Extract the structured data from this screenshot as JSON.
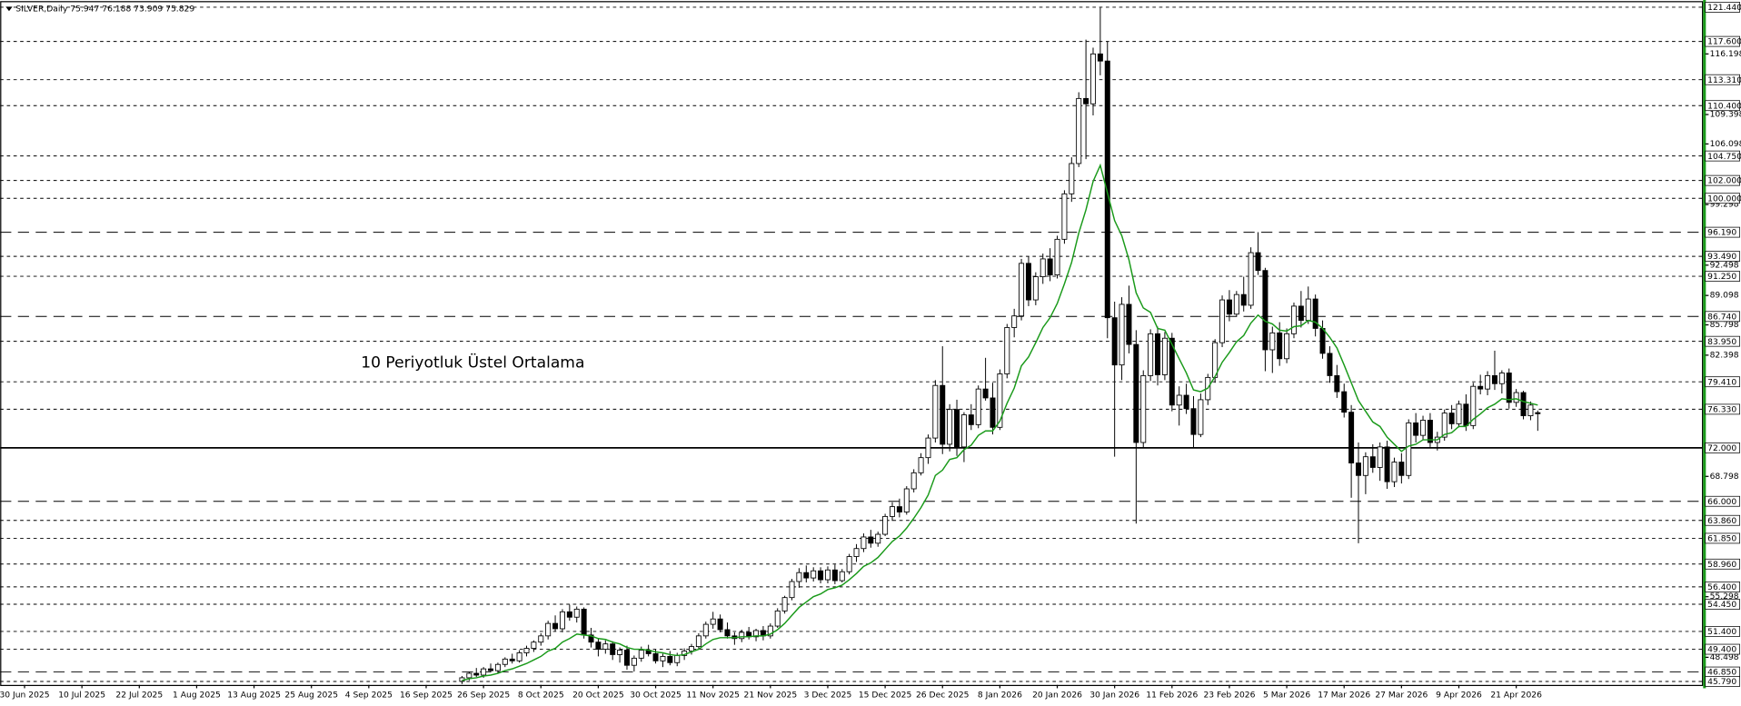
{
  "chart_data": {
    "type": "candlestick",
    "title": "SILVER,Daily  75.947 76.188 73.909 75.829",
    "annotation": {
      "text": "10 Periyotluk Üstel Ortalama",
      "color": "#1a9a1a"
    },
    "xlim": [
      -64.4,
      172.9
    ],
    "xticks": [
      {
        "value": -61,
        "label": "30 Jun 2025"
      },
      {
        "value": -53,
        "label": "10 Jul 2025"
      },
      {
        "value": -45,
        "label": "22 Jul 2025"
      },
      {
        "value": -37,
        "label": "1 Aug 2025"
      },
      {
        "value": -29,
        "label": "13 Aug 2025"
      },
      {
        "value": -21,
        "label": "25 Aug 2025"
      },
      {
        "value": -13,
        "label": "4 Sep 2025"
      },
      {
        "value": -5,
        "label": "16 Sep 2025"
      },
      {
        "value": 3,
        "label": "26 Sep 2025"
      },
      {
        "value": 11,
        "label": "8 Oct 2025"
      },
      {
        "value": 19,
        "label": "20 Oct 2025"
      },
      {
        "value": 27,
        "label": "30 Oct 2025"
      },
      {
        "value": 35,
        "label": "11 Nov 2025"
      },
      {
        "value": 43,
        "label": "21 Nov 2025"
      },
      {
        "value": 51,
        "label": "3 Dec 2025"
      },
      {
        "value": 59,
        "label": "15 Dec 2025"
      },
      {
        "value": 67,
        "label": "26 Dec 2025"
      },
      {
        "value": 75,
        "label": "8 Jan 2026"
      },
      {
        "value": 83,
        "label": "20 Jan 2026"
      },
      {
        "value": 91,
        "label": "30 Jan 2026"
      },
      {
        "value": 99,
        "label": "11 Feb 2026"
      },
      {
        "value": 107,
        "label": "23 Feb 2026"
      },
      {
        "value": 115,
        "label": "5 Mar 2026"
      },
      {
        "value": 123,
        "label": "17 Mar 2026"
      },
      {
        "value": 131,
        "label": "27 Mar 2026"
      },
      {
        "value": 139,
        "label": "9 Apr 2026"
      },
      {
        "value": 147,
        "label": "21 Apr 2026"
      }
    ],
    "ylim": [
      45.4,
      122.0
    ],
    "yticks": [
      116.198,
      109.398,
      106.098,
      99.298,
      92.498,
      89.098,
      85.798,
      82.398,
      68.798,
      55.298,
      48.498
    ],
    "levels": [
      {
        "value": 121.44,
        "label": "121.440",
        "style": "dash"
      },
      {
        "value": 117.6,
        "label": "117.600",
        "style": "dash"
      },
      {
        "value": 113.31,
        "label": "113.310",
        "style": "dash"
      },
      {
        "value": 110.4,
        "label": "110.400",
        "style": "dash"
      },
      {
        "value": 104.75,
        "label": "104.750",
        "style": "dash"
      },
      {
        "value": 102,
        "label": "102.000",
        "style": "dash"
      },
      {
        "value": 100,
        "label": "100.000",
        "style": "dash"
      },
      {
        "value": 96.19,
        "label": "96.190",
        "style": "longdash"
      },
      {
        "value": 93.49,
        "label": "93.490",
        "style": "dash"
      },
      {
        "value": 91.25,
        "label": "91.250",
        "style": "dash"
      },
      {
        "value": 86.74,
        "label": "86.740",
        "style": "longdash"
      },
      {
        "value": 83.95,
        "label": "83.950",
        "style": "dash"
      },
      {
        "value": 79.41,
        "label": "79.410",
        "style": "dash"
      },
      {
        "value": 76.33,
        "label": "76.330",
        "style": "dash"
      },
      {
        "value": 72,
        "label": "72.000",
        "style": "solid"
      },
      {
        "value": 66,
        "label": "66.000",
        "style": "longdash"
      },
      {
        "value": 63.86,
        "label": "63.860",
        "style": "dash"
      },
      {
        "value": 61.85,
        "label": "61.850",
        "style": "dash"
      },
      {
        "value": 58.96,
        "label": "58.960",
        "style": "dash"
      },
      {
        "value": 56.4,
        "label": "56.400",
        "style": "dash"
      },
      {
        "value": 54.45,
        "label": "54.450",
        "style": "dash"
      },
      {
        "value": 51.4,
        "label": "51.400",
        "style": "dash"
      },
      {
        "value": 49.4,
        "label": "49.400",
        "style": "dash"
      },
      {
        "value": 46.85,
        "label": "46.850",
        "style": "longdash"
      },
      {
        "value": 45.79,
        "label": "45.790",
        "style": "dash"
      }
    ],
    "ohlc": [
      [
        45.8,
        46.4,
        45.5,
        46.2
      ],
      [
        46.2,
        46.9,
        45.9,
        46.7
      ],
      [
        46.7,
        47.3,
        46.3,
        46.5
      ],
      [
        46.5,
        47.4,
        46.2,
        47.2
      ],
      [
        47.2,
        47.8,
        46.8,
        47.0
      ],
      [
        47.0,
        47.9,
        46.7,
        47.7
      ],
      [
        47.7,
        48.5,
        47.4,
        48.3
      ],
      [
        48.3,
        48.9,
        47.8,
        48.1
      ],
      [
        48.1,
        49.3,
        47.9,
        49.0
      ],
      [
        49.0,
        49.8,
        48.6,
        49.5
      ],
      [
        49.5,
        50.4,
        49.1,
        50.2
      ],
      [
        50.2,
        51.2,
        49.8,
        50.9
      ],
      [
        50.9,
        52.6,
        50.5,
        52.3
      ],
      [
        52.3,
        53.2,
        51.4,
        51.7
      ],
      [
        51.7,
        53.9,
        51.3,
        53.6
      ],
      [
        53.6,
        54.4,
        52.6,
        53.0
      ],
      [
        53.0,
        54.2,
        52.4,
        53.9
      ],
      [
        53.9,
        54.1,
        50.6,
        51.0
      ],
      [
        51.0,
        51.8,
        49.6,
        50.2
      ],
      [
        50.2,
        50.6,
        48.6,
        49.4
      ],
      [
        49.4,
        50.4,
        48.9,
        50.0
      ],
      [
        50.0,
        50.3,
        48.2,
        48.8
      ],
      [
        48.8,
        49.6,
        47.9,
        49.3
      ],
      [
        49.3,
        49.8,
        47.1,
        47.6
      ],
      [
        47.6,
        48.7,
        46.9,
        48.4
      ],
      [
        48.4,
        49.7,
        48.0,
        49.3
      ],
      [
        49.3,
        49.9,
        48.6,
        48.9
      ],
      [
        48.9,
        49.4,
        47.8,
        48.1
      ],
      [
        48.1,
        48.9,
        47.4,
        48.6
      ],
      [
        48.6,
        49.2,
        47.6,
        47.9
      ],
      [
        47.9,
        49.0,
        47.5,
        48.7
      ],
      [
        48.7,
        49.5,
        48.2,
        49.2
      ],
      [
        49.2,
        50.0,
        48.8,
        49.7
      ],
      [
        49.7,
        51.2,
        49.4,
        50.9
      ],
      [
        50.9,
        52.5,
        50.6,
        52.2
      ],
      [
        52.2,
        53.6,
        51.7,
        52.8
      ],
      [
        52.8,
        53.3,
        51.3,
        51.6
      ],
      [
        51.6,
        52.4,
        50.6,
        50.9
      ],
      [
        50.9,
        51.3,
        49.9,
        50.6
      ],
      [
        50.6,
        51.6,
        50.2,
        51.3
      ],
      [
        51.3,
        51.9,
        50.5,
        50.8
      ],
      [
        50.8,
        51.7,
        50.3,
        51.5
      ],
      [
        51.5,
        52.0,
        50.4,
        50.9
      ],
      [
        50.9,
        52.3,
        50.6,
        52.0
      ],
      [
        52.0,
        54.0,
        51.8,
        53.7
      ],
      [
        53.7,
        55.4,
        53.4,
        55.2
      ],
      [
        55.2,
        57.3,
        54.9,
        57.0
      ],
      [
        57.0,
        58.5,
        56.3,
        58.0
      ],
      [
        58.0,
        58.8,
        56.9,
        57.4
      ],
      [
        57.4,
        58.6,
        57.0,
        58.2
      ],
      [
        58.2,
        58.6,
        56.8,
        57.2
      ],
      [
        57.2,
        58.7,
        56.8,
        58.3
      ],
      [
        58.3,
        58.9,
        56.7,
        57.1
      ],
      [
        57.1,
        58.4,
        56.9,
        58.1
      ],
      [
        58.1,
        60.1,
        57.8,
        59.8
      ],
      [
        59.8,
        61.2,
        59.2,
        60.7
      ],
      [
        60.7,
        62.4,
        60.3,
        62.0
      ],
      [
        62.0,
        62.8,
        60.8,
        61.3
      ],
      [
        61.3,
        62.6,
        60.9,
        62.3
      ],
      [
        62.3,
        64.6,
        62.1,
        64.3
      ],
      [
        64.3,
        65.9,
        63.8,
        65.4
      ],
      [
        65.4,
        66.3,
        64.2,
        64.8
      ],
      [
        64.8,
        67.7,
        64.5,
        67.4
      ],
      [
        67.4,
        69.6,
        67.0,
        69.2
      ],
      [
        69.2,
        71.4,
        68.9,
        70.9
      ],
      [
        70.9,
        73.5,
        70.2,
        73.1
      ],
      [
        73.1,
        79.6,
        72.6,
        79.0
      ],
      [
        79.0,
        83.4,
        71.3,
        72.4
      ],
      [
        72.4,
        76.9,
        71.6,
        76.3
      ],
      [
        76.3,
        77.4,
        71.1,
        72.1
      ],
      [
        72.1,
        76.0,
        70.4,
        75.7
      ],
      [
        75.7,
        76.9,
        74.0,
        74.6
      ],
      [
        74.6,
        79.0,
        74.2,
        78.6
      ],
      [
        78.6,
        82.1,
        77.3,
        77.6
      ],
      [
        77.6,
        79.3,
        73.5,
        74.3
      ],
      [
        74.3,
        80.8,
        74.0,
        80.3
      ],
      [
        80.3,
        85.9,
        79.8,
        85.5
      ],
      [
        85.5,
        87.6,
        84.4,
        86.8
      ],
      [
        86.8,
        93.2,
        86.3,
        92.7
      ],
      [
        92.7,
        93.5,
        87.9,
        88.6
      ],
      [
        88.6,
        91.7,
        88.0,
        91.2
      ],
      [
        91.2,
        93.8,
        90.4,
        93.2
      ],
      [
        93.2,
        94.4,
        90.7,
        91.4
      ],
      [
        91.4,
        95.8,
        91.0,
        95.4
      ],
      [
        95.4,
        100.9,
        94.9,
        100.5
      ],
      [
        100.5,
        104.6,
        99.6,
        103.9
      ],
      [
        103.9,
        111.9,
        103.5,
        111.2
      ],
      [
        111.2,
        117.8,
        104.4,
        110.6
      ],
      [
        110.6,
        116.9,
        109.3,
        116.2
      ],
      [
        116.2,
        121.4,
        113.8,
        115.4
      ],
      [
        115.4,
        117.6,
        84.3,
        86.6
      ],
      [
        86.6,
        88.4,
        71.0,
        81.3
      ],
      [
        81.3,
        88.9,
        79.6,
        88.1
      ],
      [
        88.1,
        90.2,
        82.6,
        83.6
      ],
      [
        83.6,
        85.2,
        63.5,
        72.6
      ],
      [
        72.6,
        80.7,
        72.0,
        80.1
      ],
      [
        80.1,
        85.3,
        79.5,
        84.8
      ],
      [
        84.8,
        85.6,
        79.0,
        80.2
      ],
      [
        80.2,
        85.0,
        79.6,
        84.3
      ],
      [
        84.3,
        84.9,
        76.1,
        76.8
      ],
      [
        76.8,
        78.9,
        74.5,
        77.9
      ],
      [
        77.9,
        79.2,
        75.8,
        76.4
      ],
      [
        76.4,
        77.8,
        72.0,
        73.5
      ],
      [
        73.5,
        78.1,
        73.2,
        77.4
      ],
      [
        77.4,
        80.3,
        76.8,
        79.9
      ],
      [
        79.9,
        84.2,
        79.3,
        83.8
      ],
      [
        83.8,
        89.1,
        83.3,
        88.6
      ],
      [
        88.6,
        89.7,
        86.2,
        87.0
      ],
      [
        87.0,
        89.6,
        86.7,
        89.2
      ],
      [
        89.2,
        91.2,
        87.3,
        88.0
      ],
      [
        88.0,
        94.5,
        87.6,
        93.9
      ],
      [
        93.9,
        96.2,
        91.4,
        91.9
      ],
      [
        91.9,
        92.2,
        80.6,
        83.0
      ],
      [
        83.0,
        85.6,
        80.4,
        84.9
      ],
      [
        84.9,
        86.1,
        81.2,
        82.0
      ],
      [
        82.0,
        85.4,
        81.5,
        84.8
      ],
      [
        84.8,
        88.3,
        84.3,
        87.9
      ],
      [
        87.9,
        89.6,
        85.5,
        86.3
      ],
      [
        86.3,
        90.1,
        85.9,
        88.7
      ],
      [
        88.7,
        89.2,
        84.5,
        85.4
      ],
      [
        85.4,
        86.3,
        82.0,
        82.6
      ],
      [
        82.6,
        83.4,
        79.3,
        80.1
      ],
      [
        80.1,
        81.3,
        77.6,
        78.3
      ],
      [
        78.3,
        79.2,
        75.4,
        76.0
      ],
      [
        76.0,
        76.8,
        66.4,
        70.3
      ],
      [
        70.3,
        72.6,
        61.3,
        68.9
      ],
      [
        68.9,
        71.5,
        66.8,
        71.0
      ],
      [
        71.0,
        72.4,
        69.2,
        69.8
      ],
      [
        69.8,
        72.6,
        68.3,
        72.1
      ],
      [
        72.1,
        72.8,
        67.4,
        68.2
      ],
      [
        68.2,
        70.9,
        67.6,
        70.4
      ],
      [
        70.4,
        71.4,
        68.0,
        68.9
      ],
      [
        68.9,
        75.2,
        68.5,
        74.8
      ],
      [
        74.8,
        75.9,
        72.6,
        73.4
      ],
      [
        73.4,
        75.6,
        72.9,
        75.1
      ],
      [
        75.1,
        75.9,
        72.1,
        72.6
      ],
      [
        72.6,
        73.8,
        71.7,
        73.2
      ],
      [
        73.2,
        76.3,
        72.8,
        75.9
      ],
      [
        75.9,
        76.8,
        74.1,
        74.7
      ],
      [
        74.7,
        77.3,
        74.3,
        76.9
      ],
      [
        76.9,
        78.0,
        73.9,
        74.5
      ],
      [
        74.5,
        79.3,
        74.1,
        78.9
      ],
      [
        78.9,
        80.2,
        78.0,
        78.6
      ],
      [
        78.6,
        80.6,
        77.9,
        80.1
      ],
      [
        80.1,
        82.9,
        78.5,
        79.2
      ],
      [
        79.2,
        80.7,
        78.1,
        80.4
      ],
      [
        80.4,
        80.9,
        76.4,
        77.1
      ],
      [
        77.1,
        78.6,
        76.6,
        78.2
      ],
      [
        78.2,
        78.4,
        75.2,
        75.6
      ],
      [
        75.6,
        77.2,
        75.1,
        76.8
      ],
      [
        75.947,
        76.188,
        73.909,
        75.829
      ]
    ],
    "ema": {
      "color": "#1a9a1a",
      "values": [
        45.9,
        46.1,
        46.2,
        46.4,
        46.5,
        46.7,
        47.0,
        47.2,
        47.5,
        47.8,
        48.2,
        48.6,
        49.2,
        49.5,
        50.2,
        50.6,
        51.1,
        51.0,
        50.9,
        50.6,
        50.5,
        50.2,
        50.0,
        49.6,
        49.4,
        49.4,
        49.3,
        49.1,
        49.0,
        48.8,
        48.7,
        48.8,
        49.1,
        49.4,
        50.0,
        50.5,
        50.7,
        50.7,
        50.7,
        50.8,
        50.8,
        50.9,
        50.9,
        51.1,
        51.6,
        52.3,
        53.2,
        54.1,
        54.7,
        55.3,
        55.6,
        56.1,
        56.3,
        56.6,
        57.2,
        57.9,
        58.7,
        59.1,
        59.7,
        60.6,
        61.5,
        62.1,
        63.0,
        64.1,
        65.3,
        66.7,
        68.9,
        69.5,
        70.7,
        70.9,
        71.8,
        72.3,
        73.4,
        73.9,
        73.9,
        75.0,
        77.0,
        78.7,
        81.2,
        82.2,
        83.8,
        85.5,
        86.6,
        88.2,
        90.4,
        92.8,
        96.1,
        98.7,
        101.9,
        103.7,
        100.6,
        97.5,
        95.8,
        93.1,
        89.4,
        87.7,
        87.2,
        85.4,
        85.2,
        83.6,
        82.0,
        80.4,
        78.5,
        78.3,
        78.7,
        80.0,
        81.6,
        82.7,
        83.9,
        84.6,
        86.0,
        86.9,
        86.2,
        85.9,
        85.2,
        85.1,
        85.6,
        85.7,
        86.3,
        86.1,
        85.4,
        84.4,
        83.2,
        81.3,
        79.3,
        77.3,
        76.1,
        74.9,
        74.4,
        73.2,
        72.4,
        71.6,
        72.2,
        72.4,
        72.9,
        72.9,
        72.9,
        73.5,
        73.7,
        74.4,
        74.4,
        75.2,
        75.8,
        76.5,
        76.9,
        77.5,
        77.4,
        77.5,
        77.2,
        77.0,
        76.8
      ]
    },
    "up_color": "#ffffff",
    "down_color": "#000000",
    "axis_color": "#1a9a1a"
  }
}
